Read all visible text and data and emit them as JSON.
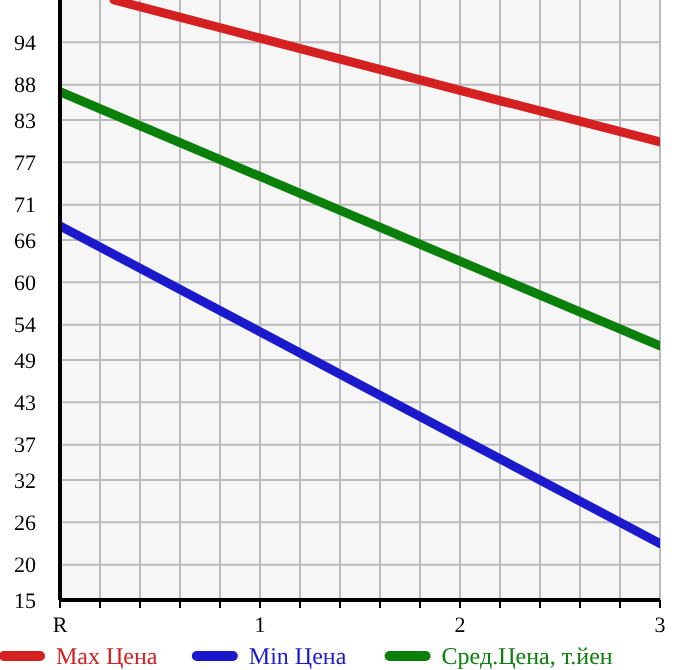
{
  "chart_data": {
    "type": "line",
    "xlim": [
      0,
      3
    ],
    "xticks": [
      {
        "value": 0,
        "label": "R"
      },
      {
        "value": 0.2,
        "label": null
      },
      {
        "value": 0.4,
        "label": null
      },
      {
        "value": 0.6,
        "label": null
      },
      {
        "value": 0.8,
        "label": null
      },
      1,
      {
        "value": 1.2,
        "label": null
      },
      {
        "value": 1.4,
        "label": null
      },
      {
        "value": 1.6,
        "label": null
      },
      {
        "value": 1.8,
        "label": null
      },
      2,
      {
        "value": 2.2,
        "label": null
      },
      {
        "value": 2.4,
        "label": null
      },
      {
        "value": 2.6,
        "label": null
      },
      {
        "value": 2.8,
        "label": null
      },
      3
    ],
    "ylim": [
      15,
      100
    ],
    "yticks": [
      15,
      20,
      26,
      32,
      37,
      43,
      49,
      54,
      60,
      66,
      71,
      77,
      83,
      88,
      94
    ],
    "grid": true,
    "legend": "bottom",
    "marker": "none",
    "line_style": "solid",
    "series": [
      {
        "name": "Max Цена",
        "color": "#d42020",
        "x": [
          0.27,
          1,
          2,
          3
        ],
        "values": [
          100,
          94.6,
          87.2,
          79.9
        ]
      },
      {
        "name": "Min Цена",
        "color": "#1a1acc",
        "x": [
          0,
          1,
          2,
          3
        ],
        "values": [
          68,
          53,
          38,
          23
        ]
      },
      {
        "name": "Сред.Цена, т.йен",
        "color": "#0a800a",
        "x": [
          0,
          1,
          2,
          3
        ],
        "values": [
          87,
          75,
          63,
          51
        ]
      }
    ]
  }
}
